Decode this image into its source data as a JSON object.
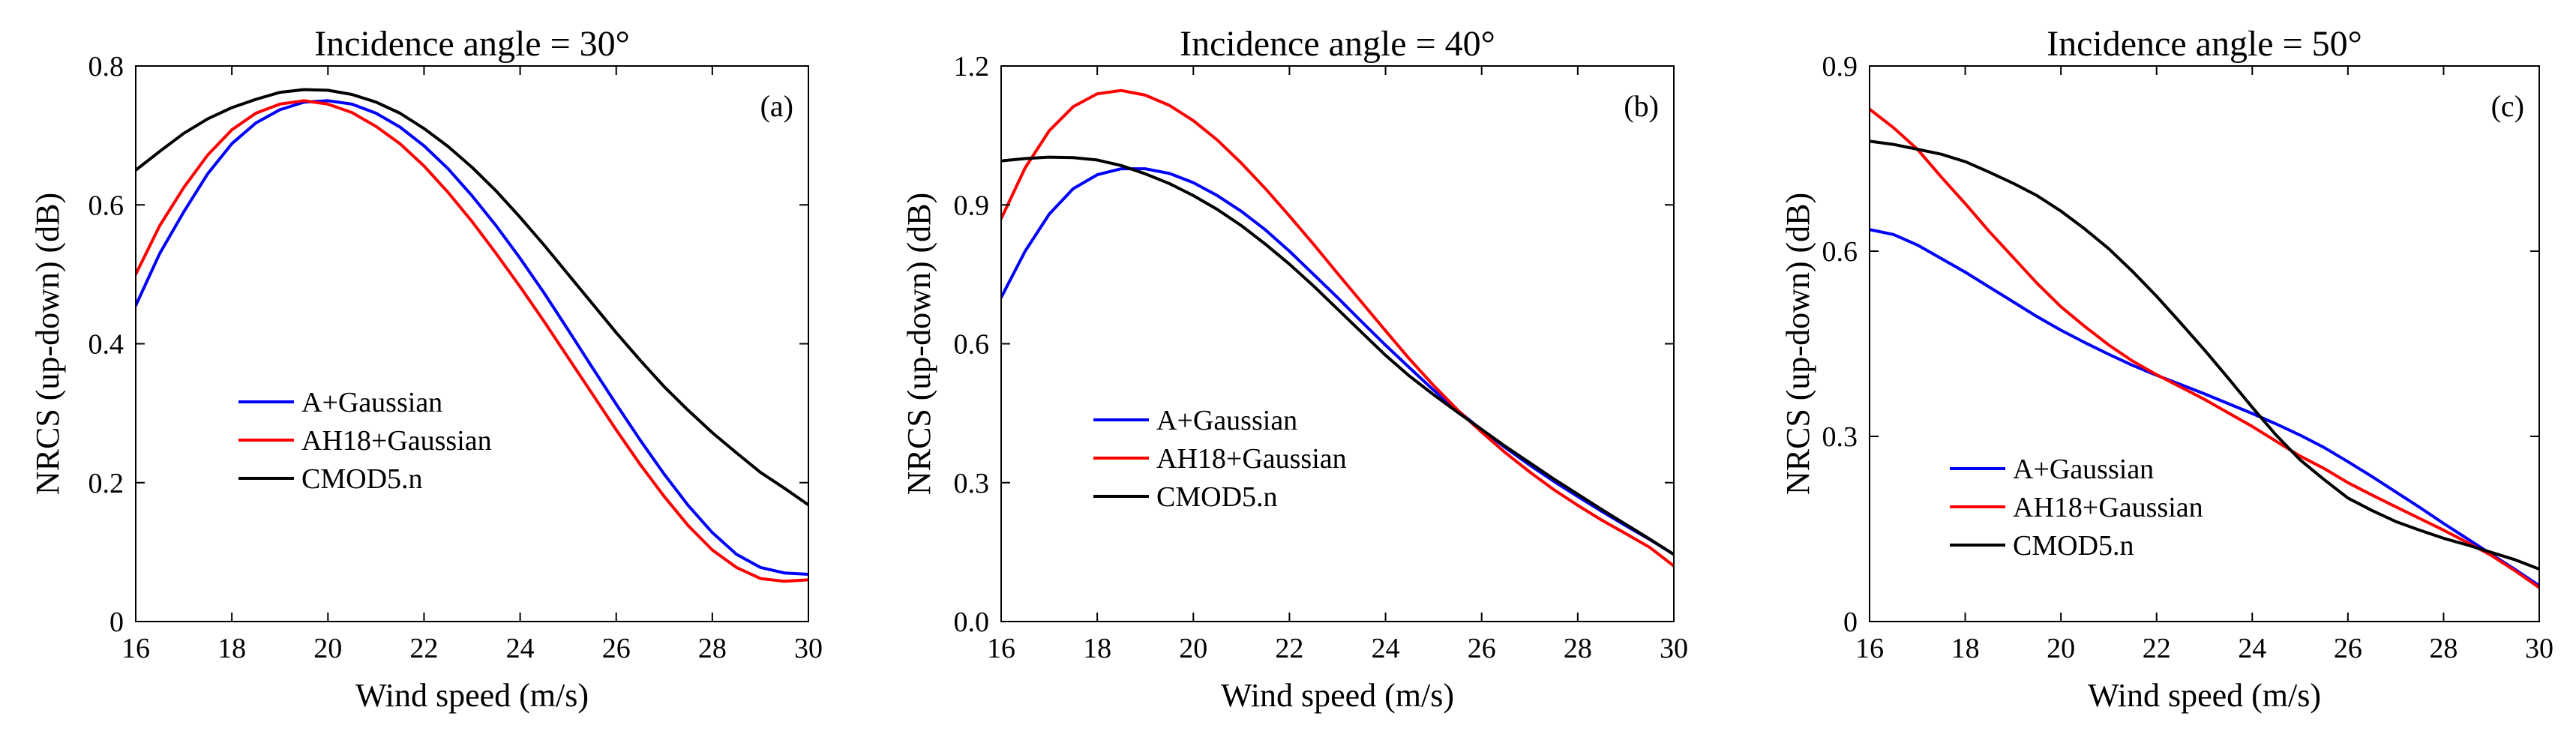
{
  "figure": {
    "colors": {
      "A+Gaussian": "#0000ff",
      "AH18+Gaussian": "#ff0000",
      "CMOD5.n": "#000000"
    }
  },
  "chart_data": [
    {
      "type": "line",
      "panel_label": "(a)",
      "title": "Incidence angle = 30°",
      "xlabel": "Wind speed (m/s)",
      "ylabel": "NRCS (up-down) (dB)",
      "xlim": [
        16,
        30
      ],
      "ylim": [
        0,
        0.8
      ],
      "xticks": [
        16,
        18,
        20,
        22,
        24,
        26,
        28,
        30
      ],
      "xtick_labels": [
        "16",
        "18",
        "20",
        "22",
        "24",
        "26",
        "28",
        "30"
      ],
      "yticks": [
        0,
        0.2,
        0.4,
        0.6,
        0.8
      ],
      "ytick_labels": [
        "0",
        "0.2",
        "0.4",
        "0.6",
        "0.8"
      ],
      "grid": false,
      "legend_position": "lower-left",
      "x": [
        16,
        16.5,
        17,
        17.5,
        18,
        18.5,
        19,
        19.5,
        20,
        20.5,
        21,
        21.5,
        22,
        22.5,
        23,
        23.5,
        24,
        24.5,
        25,
        25.5,
        26,
        26.5,
        27,
        27.5,
        28,
        28.5,
        29,
        29.5,
        30
      ],
      "series": [
        {
          "name": "A+Gaussian",
          "color": "#0000ff",
          "values": [
            0.455,
            0.53,
            0.59,
            0.645,
            0.688,
            0.718,
            0.737,
            0.748,
            0.75,
            0.745,
            0.732,
            0.712,
            0.685,
            0.652,
            0.613,
            0.57,
            0.523,
            0.473,
            0.42,
            0.366,
            0.313,
            0.261,
            0.212,
            0.167,
            0.128,
            0.097,
            0.078,
            0.07,
            0.068
          ]
        },
        {
          "name": "AH18+Gaussian",
          "color": "#ff0000",
          "values": [
            0.5,
            0.57,
            0.625,
            0.672,
            0.708,
            0.732,
            0.745,
            0.75,
            0.745,
            0.733,
            0.713,
            0.688,
            0.656,
            0.618,
            0.576,
            0.53,
            0.482,
            0.432,
            0.38,
            0.328,
            0.276,
            0.226,
            0.18,
            0.138,
            0.103,
            0.078,
            0.062,
            0.058,
            0.06
          ]
        },
        {
          "name": "CMOD5.n",
          "color": "#000000",
          "values": [
            0.65,
            0.677,
            0.703,
            0.724,
            0.74,
            0.752,
            0.762,
            0.766,
            0.765,
            0.759,
            0.748,
            0.732,
            0.71,
            0.684,
            0.654,
            0.62,
            0.582,
            0.542,
            0.5,
            0.458,
            0.416,
            0.376,
            0.338,
            0.304,
            0.272,
            0.243,
            0.215,
            0.192,
            0.168
          ]
        }
      ]
    },
    {
      "type": "line",
      "panel_label": "(b)",
      "title": "Incidence angle = 40°",
      "xlabel": "Wind speed (m/s)",
      "ylabel": "NRCS (up-down) (dB)",
      "xlim": [
        16,
        30
      ],
      "ylim": [
        0,
        1.2
      ],
      "xticks": [
        16,
        18,
        20,
        22,
        24,
        26,
        28,
        30
      ],
      "xtick_labels": [
        "16",
        "18",
        "20",
        "22",
        "24",
        "26",
        "28",
        "30"
      ],
      "yticks": [
        0,
        0.3,
        0.6,
        0.9,
        1.2
      ],
      "ytick_labels": [
        "0.0",
        "0.3",
        "0.6",
        "0.9",
        "1.2"
      ],
      "grid": false,
      "legend_position": "lower-left",
      "x": [
        16,
        16.5,
        17,
        17.5,
        18,
        18.5,
        19,
        19.5,
        20,
        20.5,
        21,
        21.5,
        22,
        22.5,
        23,
        23.5,
        24,
        24.5,
        25,
        25.5,
        26,
        26.5,
        27,
        27.5,
        28,
        28.5,
        29,
        29.5,
        30
      ],
      "series": [
        {
          "name": "A+Gaussian",
          "color": "#0000ff",
          "values": [
            0.7,
            0.8,
            0.88,
            0.935,
            0.965,
            0.978,
            0.978,
            0.968,
            0.948,
            0.92,
            0.886,
            0.846,
            0.8,
            0.75,
            0.7,
            0.648,
            0.597,
            0.548,
            0.5,
            0.456,
            0.414,
            0.375,
            0.338,
            0.303,
            0.27,
            0.238,
            0.207,
            0.177,
            0.145
          ]
        },
        {
          "name": "AH18+Gaussian",
          "color": "#ff0000",
          "values": [
            0.87,
            0.98,
            1.06,
            1.112,
            1.14,
            1.147,
            1.137,
            1.115,
            1.082,
            1.04,
            0.99,
            0.935,
            0.876,
            0.815,
            0.752,
            0.69,
            0.628,
            0.567,
            0.51,
            0.457,
            0.409,
            0.364,
            0.323,
            0.285,
            0.251,
            0.219,
            0.19,
            0.16,
            0.12
          ]
        },
        {
          "name": "CMOD5.n",
          "color": "#000000",
          "values": [
            0.995,
            1.0,
            1.003,
            1.002,
            0.997,
            0.985,
            0.967,
            0.946,
            0.92,
            0.89,
            0.855,
            0.815,
            0.772,
            0.725,
            0.675,
            0.625,
            0.575,
            0.53,
            0.49,
            0.452,
            0.415,
            0.378,
            0.343,
            0.308,
            0.275,
            0.242,
            0.21,
            0.178,
            0.145
          ]
        }
      ]
    },
    {
      "type": "line",
      "panel_label": "(c)",
      "title": "Incidence angle = 50°",
      "xlabel": "Wind speed (m/s)",
      "ylabel": "NRCS (up-down) (dB)",
      "xlim": [
        16,
        30
      ],
      "ylim": [
        0,
        0.9
      ],
      "xticks": [
        16,
        18,
        20,
        22,
        24,
        26,
        28,
        30
      ],
      "xtick_labels": [
        "16",
        "18",
        "20",
        "22",
        "24",
        "26",
        "28",
        "30"
      ],
      "yticks": [
        0,
        0.3,
        0.6,
        0.9
      ],
      "ytick_labels": [
        "0",
        "0.3",
        "0.6",
        "0.9"
      ],
      "grid": false,
      "legend_position": "lower-left",
      "x": [
        16,
        16.5,
        17,
        17.5,
        18,
        18.5,
        19,
        19.5,
        20,
        20.5,
        21,
        21.5,
        22,
        22.5,
        23,
        23.5,
        24,
        24.5,
        25,
        25.5,
        26,
        26.5,
        27,
        27.5,
        28,
        28.5,
        29,
        29.5,
        30
      ],
      "series": [
        {
          "name": "A+Gaussian",
          "color": "#0000ff",
          "values": [
            0.635,
            0.627,
            0.61,
            0.588,
            0.566,
            0.542,
            0.518,
            0.494,
            0.472,
            0.452,
            0.433,
            0.415,
            0.399,
            0.384,
            0.369,
            0.353,
            0.337,
            0.32,
            0.302,
            0.282,
            0.259,
            0.235,
            0.21,
            0.185,
            0.159,
            0.134,
            0.109,
            0.084,
            0.058
          ]
        },
        {
          "name": "AH18+Gaussian",
          "color": "#ff0000",
          "values": [
            0.83,
            0.8,
            0.765,
            0.72,
            0.677,
            0.632,
            0.59,
            0.548,
            0.51,
            0.478,
            0.448,
            0.422,
            0.4,
            0.38,
            0.36,
            0.338,
            0.316,
            0.292,
            0.268,
            0.248,
            0.225,
            0.205,
            0.186,
            0.167,
            0.148,
            0.128,
            0.107,
            0.082,
            0.055
          ]
        },
        {
          "name": "CMOD5.n",
          "color": "#000000",
          "values": [
            0.778,
            0.773,
            0.765,
            0.757,
            0.745,
            0.728,
            0.71,
            0.69,
            0.665,
            0.636,
            0.604,
            0.567,
            0.527,
            0.484,
            0.44,
            0.394,
            0.347,
            0.302,
            0.262,
            0.23,
            0.2,
            0.18,
            0.162,
            0.148,
            0.135,
            0.124,
            0.112,
            0.1,
            0.085
          ]
        }
      ]
    }
  ]
}
